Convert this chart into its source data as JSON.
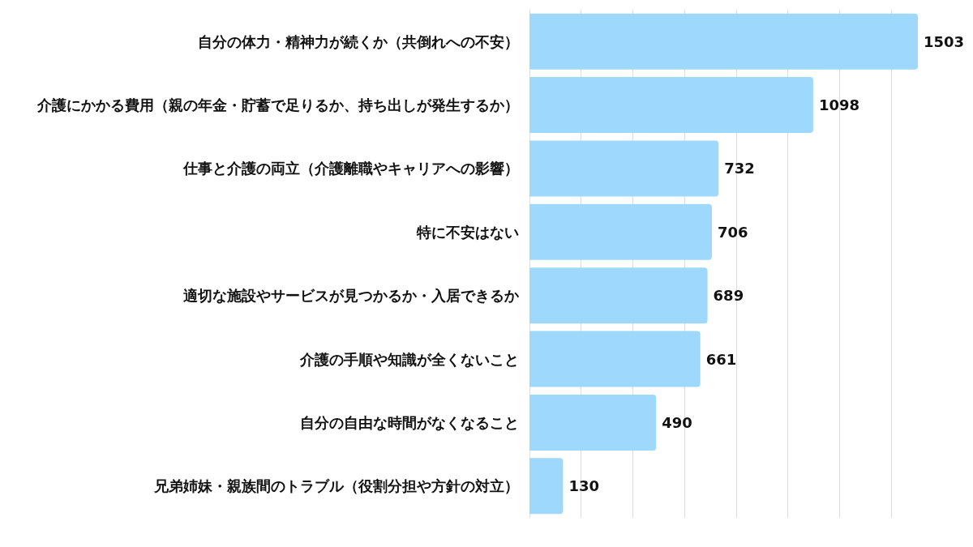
{
  "chart_data": {
    "type": "bar",
    "orientation": "horizontal",
    "categories": [
      "自分の体力・精神力が続くか（共倒れへの不安）",
      "介護にかかる費用（親の年金・貯蓄で足りるか、持ち出しが発生するか）",
      "仕事と介護の両立（介護離職やキャリアへの影響）",
      "特に不安はない",
      "適切な施設やサービスが見つかるか・入居できるか",
      "介護の手順や知識が全くないこと",
      "自分の自由な時間がなくなること",
      "兄弟姉妹・親族間のトラブル（役割分担や方針の対立）"
    ],
    "values": [
      1503,
      1098,
      732,
      706,
      689,
      661,
      490,
      130
    ],
    "color": "#9ed8fd",
    "xlim": [
      0,
      1503
    ],
    "xticks": [
      {
        "value": 0,
        "label": null
      },
      {
        "value": 200,
        "label": null
      },
      {
        "value": 400,
        "label": null
      },
      {
        "value": 600,
        "label": null
      },
      {
        "value": 800,
        "label": null
      },
      {
        "value": 1000,
        "label": null
      },
      {
        "value": 1200,
        "label": null
      },
      {
        "value": 1400,
        "label": null
      }
    ],
    "grid": "x",
    "tick_labels": "y",
    "data_labels": true
  }
}
